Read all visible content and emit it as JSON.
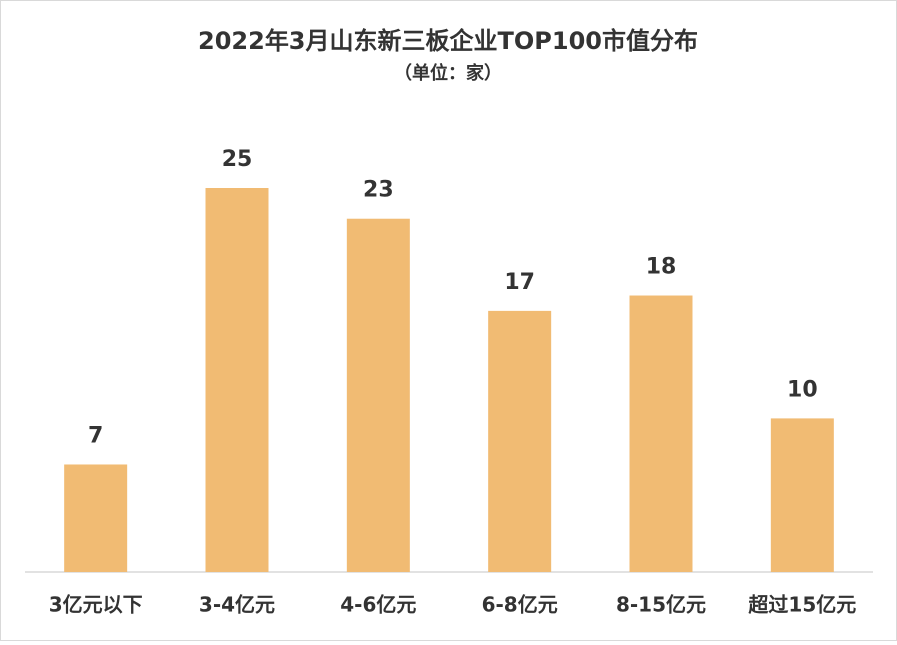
{
  "chart_data": {
    "type": "bar",
    "title": "2022年3月山东新三板企业TOP100市值分布",
    "subtitle": "（单位：家）",
    "categories": [
      "3亿元以下",
      "3-4亿元",
      "4-6亿元",
      "6-8亿元",
      "8-15亿元",
      "超过15亿元"
    ],
    "values": [
      7,
      25,
      23,
      17,
      18,
      10
    ],
    "color": "#f1bb73"
  }
}
